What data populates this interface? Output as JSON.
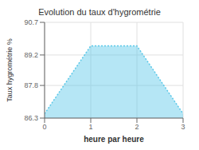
{
  "chart_data": {
    "type": "area",
    "title": "Evolution du taux d'hygrométrie",
    "xlabel": "heure par heure",
    "ylabel": "Taux hygrométrie %",
    "x": [
      0,
      1,
      2,
      3
    ],
    "values": [
      86.5,
      89.62,
      89.62,
      86.5
    ],
    "xlim": [
      0,
      3
    ],
    "xticks": [
      0,
      1,
      2,
      3
    ],
    "ylim": [
      86.3,
      90.7
    ],
    "yticks": [
      86.3,
      87.8,
      89.2,
      90.7
    ],
    "color": "#5bc8e8",
    "line_style": "dotted",
    "grid": true
  }
}
